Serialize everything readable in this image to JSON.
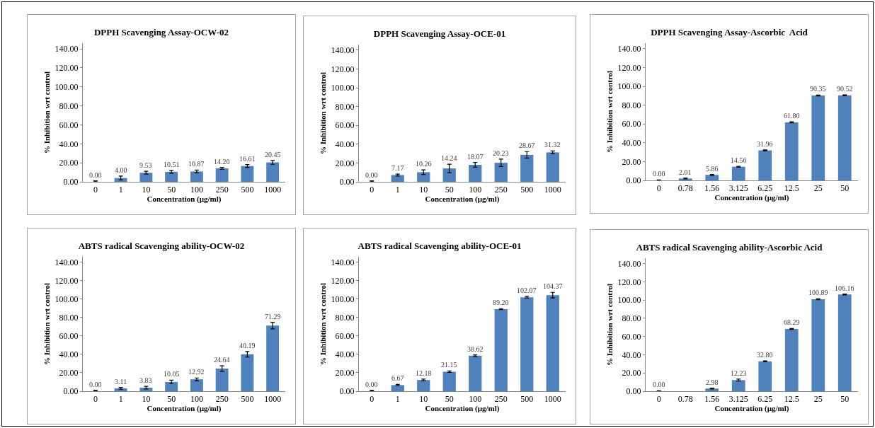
{
  "chart_data": [
    {
      "type": "bar",
      "title": "DPPH Scavenging Assay-OCW-02",
      "xlabel": "Concentration (µg/ml)",
      "ylabel": "% Inhibition wrt control",
      "categories": [
        "0",
        "1",
        "10",
        "50",
        "100",
        "250",
        "500",
        "1000"
      ],
      "values": [
        0,
        4,
        9.53,
        10.51,
        10.87,
        14.2,
        16.61,
        20.45
      ],
      "value_labels": [
        "0.00",
        "4.00",
        "9.53",
        "10.51",
        "10.87",
        "14.20",
        "16.61",
        "20.45"
      ],
      "errors": [
        [
          0,
          1
        ],
        2,
        1.5,
        1.5,
        1.5,
        1,
        1.5,
        2
      ],
      "color": "#4f81bd",
      "ylim": [
        0,
        146
      ],
      "yticks": [
        {
          "value": 0,
          "label": "0.00"
        },
        {
          "value": 20,
          "label": "20.00"
        },
        {
          "value": 40,
          "label": "40.00"
        },
        {
          "value": 60,
          "label": "60.00"
        },
        {
          "value": 80,
          "label": "80.00"
        },
        {
          "value": 100,
          "label": "100.00"
        },
        {
          "value": 120,
          "label": "120.00"
        },
        {
          "value": 140,
          "label": "140.00"
        }
      ],
      "grid": false
    },
    {
      "type": "bar",
      "title": "DPPH Scavenging Assay-OCE-01",
      "xlabel": "Concentration (µg/ml)",
      "ylabel": "% Inhibition wrt control",
      "categories": [
        "0",
        "1",
        "10",
        "50",
        "100",
        "250",
        "500",
        "1000"
      ],
      "values": [
        0,
        7.17,
        10.26,
        14.24,
        18.07,
        20.23,
        28.67,
        31.32
      ],
      "value_labels": [
        "0.00",
        "7.17",
        "10.26",
        "14.24",
        "18.07",
        "20.23",
        "28.67",
        "31.32"
      ],
      "errors": [
        [
          0,
          1
        ],
        1,
        2.5,
        4.5,
        2.5,
        4,
        3.5,
        1.5
      ],
      "color": "#4f81bd",
      "ylim": [
        0,
        146
      ],
      "yticks": [
        {
          "value": 0,
          "label": "0.00"
        },
        {
          "value": 20,
          "label": "20.00"
        },
        {
          "value": 40,
          "label": "40.00"
        },
        {
          "value": 60,
          "label": "60.00"
        },
        {
          "value": 80,
          "label": "80.00"
        },
        {
          "value": 100,
          "label": "100.00"
        },
        {
          "value": 120,
          "label": "120.00"
        },
        {
          "value": 140,
          "label": "140.00"
        }
      ],
      "grid": false
    },
    {
      "type": "bar",
      "title": "DPPH Scavenging Assay-Ascorbic  Acid",
      "xlabel": "Concentration (µg/ml)",
      "ylabel": "% Inhibition wrt control",
      "categories": [
        "0",
        "0.78",
        "1.56",
        "3.125",
        "6.25",
        "12.5",
        "25",
        "50"
      ],
      "values": [
        0,
        2.01,
        5.86,
        14.56,
        31.96,
        61.8,
        90.35,
        90.52
      ],
      "value_labels": [
        "0.00",
        "2.01",
        "5.86",
        "14.56",
        "31.96",
        "61.80",
        "90.35",
        "90.52"
      ],
      "errors": [
        0.5,
        0.5,
        0.5,
        0.5,
        0.5,
        0.5,
        0.5,
        0.5
      ],
      "color": "#4f81bd",
      "ylim": [
        0,
        146
      ],
      "yticks": [
        {
          "value": 0,
          "label": "0.00"
        },
        {
          "value": 20,
          "label": "20.00"
        },
        {
          "value": 40,
          "label": "40.00"
        },
        {
          "value": 60,
          "label": "60.00"
        },
        {
          "value": 80,
          "label": "80.00"
        },
        {
          "value": 100,
          "label": "100.00"
        },
        {
          "value": 120,
          "label": "120.00"
        },
        {
          "value": 140,
          "label": "140.00"
        }
      ],
      "grid": false
    },
    {
      "type": "bar",
      "title": "ABTS radical Scavenging ability-OCW-02",
      "xlabel": "Concentration (µg/ml)",
      "ylabel": "% Inhibition wrt control",
      "categories": [
        "0",
        "1",
        "10",
        "50",
        "100",
        "250",
        "500",
        "1000"
      ],
      "values": [
        0,
        3.11,
        3.83,
        10.05,
        12.92,
        24.64,
        40.19,
        71.29
      ],
      "value_labels": [
        "0.00",
        "3.11",
        "3.83",
        "10.05",
        "12.92",
        "24.64",
        "40.19",
        "71.29"
      ],
      "errors": [
        [
          0,
          1
        ],
        1,
        1.5,
        2,
        1.5,
        3,
        3,
        3.5
      ],
      "color": "#4f81bd",
      "ylim": [
        0,
        146
      ],
      "yticks": [
        {
          "value": 0,
          "label": "0.00"
        },
        {
          "value": 20,
          "label": "20.00"
        },
        {
          "value": 40,
          "label": "40.00"
        },
        {
          "value": 60,
          "label": "60.00"
        },
        {
          "value": 80,
          "label": "80.00"
        },
        {
          "value": 100,
          "label": "100.00"
        },
        {
          "value": 120,
          "label": "120.00"
        },
        {
          "value": 140,
          "label": "140.00"
        }
      ],
      "grid": false
    },
    {
      "type": "bar",
      "title": "ABTS radical Scavenging ability-OCE-01",
      "xlabel": "Concentration (µg/ml)",
      "ylabel": "% Inhibition wrt control",
      "categories": [
        "0",
        "1",
        "10",
        "50",
        "100",
        "250",
        "500",
        "1000"
      ],
      "values": [
        0,
        6.67,
        12.18,
        21.15,
        38.62,
        89.2,
        102.07,
        104.37
      ],
      "value_labels": [
        "0.00",
        "6.67",
        "12.18",
        "21.15",
        "38.62",
        "89.20",
        "102.07",
        "104.37"
      ],
      "errors": [
        [
          0,
          1
        ],
        0.8,
        1,
        0.8,
        0.8,
        0.5,
        1,
        3
      ],
      "color": "#4f81bd",
      "ylim": [
        0,
        146
      ],
      "yticks": [
        {
          "value": 0,
          "label": "0.00"
        },
        {
          "value": 20,
          "label": "20.00"
        },
        {
          "value": 40,
          "label": "40.00"
        },
        {
          "value": 60,
          "label": "60.00"
        },
        {
          "value": 80,
          "label": "80.00"
        },
        {
          "value": 100,
          "label": "100.00"
        },
        {
          "value": 120,
          "label": "120.00"
        },
        {
          "value": 140,
          "label": "140.00"
        }
      ],
      "grid": false
    },
    {
      "type": "bar",
      "title": "ABTS radical Scavenging ability-Ascorbic Acid",
      "xlabel": "Concentration (µg/ml)",
      "ylabel": "% Inhibition wrt control",
      "categories": [
        "0",
        "0.78",
        "1.56",
        "3.125",
        "6.25",
        "12.5",
        "25",
        "50"
      ],
      "values": [
        0,
        null,
        2.98,
        12.23,
        32.8,
        68.29,
        100.89,
        106.16
      ],
      "value_labels": [
        "0.00",
        null,
        "2.98",
        "12.23",
        "32.80",
        "68.29",
        "100.89",
        "106.16"
      ],
      "errors": [
        0.5,
        null,
        0.5,
        1,
        0.5,
        0.5,
        0.5,
        0.5
      ],
      "color": "#4f81bd",
      "ylim": [
        0,
        146
      ],
      "yticks": [
        {
          "value": 0,
          "label": "0.00"
        },
        {
          "value": 20,
          "label": "20.00"
        },
        {
          "value": 40,
          "label": "40.00"
        },
        {
          "value": 60,
          "label": "60.00"
        },
        {
          "value": 80,
          "label": "80.00"
        },
        {
          "value": 100,
          "label": "100.00"
        },
        {
          "value": 120,
          "label": "120.00"
        },
        {
          "value": 140,
          "label": "140.00"
        }
      ],
      "grid": false
    }
  ]
}
